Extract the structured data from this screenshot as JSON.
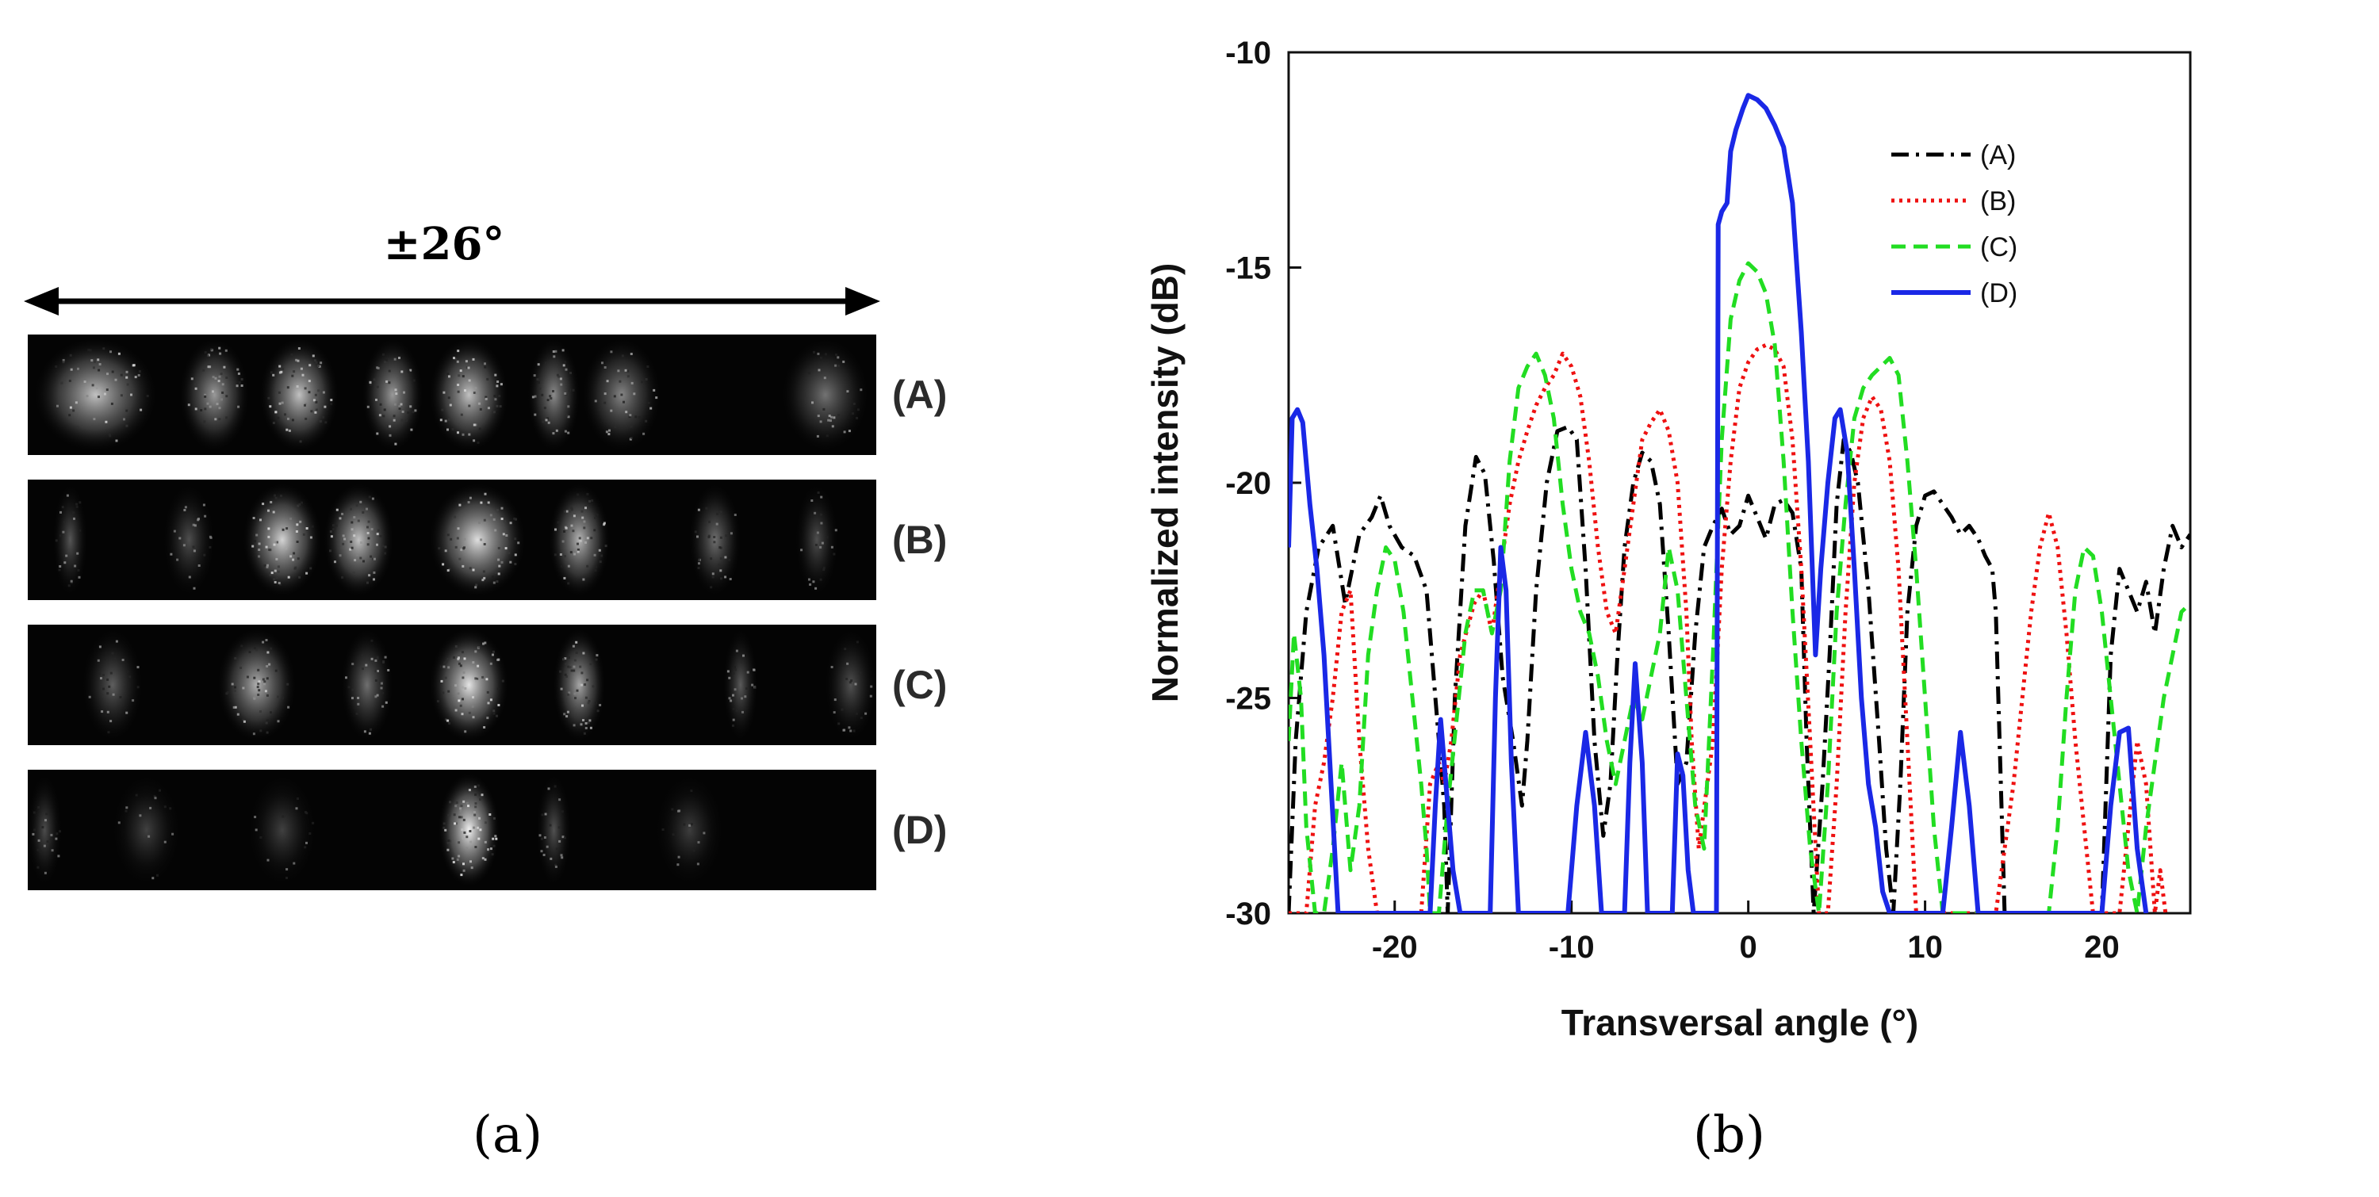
{
  "panel_a": {
    "span_label": "±26°",
    "rows": [
      {
        "label": "(A)",
        "spots": [
          {
            "c": 0.08,
            "w": 0.07,
            "i": 0.8
          },
          {
            "c": 0.22,
            "w": 0.04,
            "i": 0.62
          },
          {
            "c": 0.32,
            "w": 0.045,
            "i": 0.8
          },
          {
            "c": 0.43,
            "w": 0.035,
            "i": 0.62
          },
          {
            "c": 0.52,
            "w": 0.045,
            "i": 0.8
          },
          {
            "c": 0.62,
            "w": 0.03,
            "i": 0.55
          },
          {
            "c": 0.7,
            "w": 0.045,
            "i": 0.52
          },
          {
            "c": 0.94,
            "w": 0.05,
            "i": 0.42
          }
        ]
      },
      {
        "label": "(B)",
        "spots": [
          {
            "c": 0.05,
            "w": 0.02,
            "i": 0.25
          },
          {
            "c": 0.19,
            "w": 0.03,
            "i": 0.2
          },
          {
            "c": 0.3,
            "w": 0.045,
            "i": 0.88
          },
          {
            "c": 0.39,
            "w": 0.04,
            "i": 0.8
          },
          {
            "c": 0.53,
            "w": 0.055,
            "i": 0.92
          },
          {
            "c": 0.65,
            "w": 0.035,
            "i": 0.75
          },
          {
            "c": 0.81,
            "w": 0.03,
            "i": 0.4
          },
          {
            "c": 0.93,
            "w": 0.025,
            "i": 0.2
          }
        ]
      },
      {
        "label": "(C)",
        "spots": [
          {
            "c": 0.1,
            "w": 0.035,
            "i": 0.3
          },
          {
            "c": 0.27,
            "w": 0.045,
            "i": 0.72
          },
          {
            "c": 0.4,
            "w": 0.03,
            "i": 0.4
          },
          {
            "c": 0.52,
            "w": 0.045,
            "i": 0.95
          },
          {
            "c": 0.65,
            "w": 0.03,
            "i": 0.68
          },
          {
            "c": 0.84,
            "w": 0.02,
            "i": 0.28
          },
          {
            "c": 0.97,
            "w": 0.03,
            "i": 0.22
          }
        ]
      },
      {
        "label": "(D)",
        "spots": [
          {
            "c": 0.02,
            "w": 0.02,
            "i": 0.18
          },
          {
            "c": 0.14,
            "w": 0.04,
            "i": 0.1
          },
          {
            "c": 0.3,
            "w": 0.04,
            "i": 0.1
          },
          {
            "c": 0.52,
            "w": 0.035,
            "i": 1.0
          },
          {
            "c": 0.62,
            "w": 0.02,
            "i": 0.22
          },
          {
            "c": 0.78,
            "w": 0.04,
            "i": 0.08
          }
        ]
      }
    ],
    "caption": "(a)"
  },
  "panel_b": {
    "caption": "(b)"
  },
  "colors": {
    "A": "#000000",
    "B": "#ee1111",
    "C": "#22dd22",
    "D": "#1a28e6"
  },
  "chart_data": {
    "type": "line",
    "title": "",
    "xlabel": "Transversal angle (°)",
    "ylabel": "Normalized intensity (dB)",
    "xlim": [
      -26,
      25
    ],
    "ylim": [
      -30,
      -10
    ],
    "xticks": [
      -20,
      -10,
      0,
      10,
      20
    ],
    "yticks": [
      -30,
      -25,
      -20,
      -15,
      -10
    ],
    "legend_position": "top-right",
    "series": [
      {
        "name": "(A)",
        "style": "dash-dot",
        "color": "#000000",
        "x": [
          -26,
          -25.6,
          -25,
          -24.3,
          -23.5,
          -22.8,
          -22,
          -21.3,
          -20.8,
          -20.3,
          -19.6,
          -18.9,
          -18.2,
          -17.6,
          -17.2,
          -17.0,
          -16.6,
          -16.0,
          -15.4,
          -14.9,
          -14.4,
          -13.9,
          -13.3,
          -12.8,
          -12.5,
          -12.0,
          -11.4,
          -10.8,
          -10.2,
          -9.7,
          -9.2,
          -8.7,
          -8.2,
          -7.8,
          -7.4,
          -7.0,
          -6.5,
          -6.0,
          -5.5,
          -5.0,
          -4.5,
          -4.0,
          -3.5,
          -3.0,
          -2.5,
          -2.0,
          -1.5,
          -1.0,
          -0.5,
          0.0,
          0.5,
          1.0,
          1.5,
          2.0,
          2.5,
          3.0,
          3.3,
          3.7,
          4.2,
          4.6,
          5.0,
          5.4,
          5.8,
          6.2,
          6.8,
          7.4,
          7.8,
          8.2,
          8.6,
          9.0,
          9.5,
          10.0,
          10.5,
          11.0,
          11.5,
          12.0,
          12.5,
          13.0,
          13.4,
          13.8,
          14.0,
          14.5,
          15.5,
          16.5,
          17.5,
          18.5,
          19.5,
          20.0,
          20.5,
          21.0,
          21.5,
          22.0,
          22.5,
          23.0,
          23.5,
          24.0,
          24.5,
          25.0
        ],
        "y": [
          -30,
          -26,
          -23,
          -21.5,
          -21.0,
          -22.8,
          -21.2,
          -20.8,
          -20.3,
          -21.0,
          -21.5,
          -21.7,
          -22.5,
          -25.5,
          -27.5,
          -30,
          -25,
          -21.0,
          -19.4,
          -19.8,
          -21.8,
          -24.5,
          -26.0,
          -27.5,
          -26.0,
          -22.5,
          -20.0,
          -18.8,
          -18.7,
          -19.0,
          -22.0,
          -26.0,
          -28.2,
          -27.0,
          -24.0,
          -21.5,
          -20.0,
          -19.3,
          -19.5,
          -20.5,
          -23.5,
          -27.0,
          -26.5,
          -23.5,
          -21.5,
          -21.0,
          -20.6,
          -21.2,
          -21.0,
          -20.3,
          -20.8,
          -21.3,
          -20.5,
          -20.4,
          -20.7,
          -22.0,
          -26.0,
          -30,
          -27.0,
          -24.0,
          -20.5,
          -19.0,
          -19.3,
          -20.0,
          -22.5,
          -26.0,
          -28.5,
          -30,
          -27.0,
          -23.0,
          -21.0,
          -20.3,
          -20.2,
          -20.5,
          -20.8,
          -21.2,
          -21.0,
          -21.3,
          -21.7,
          -22.0,
          -23.0,
          -30,
          -30,
          -30,
          -30,
          -30,
          -30,
          -30,
          -24.0,
          -22.0,
          -22.5,
          -23.0,
          -22.3,
          -23.5,
          -22.0,
          -21.0,
          -21.5,
          -21.2
        ]
      },
      {
        "name": "(B)",
        "style": "dotted",
        "color": "#ee1111",
        "x": [
          -26,
          -25.5,
          -25.0,
          -24.5,
          -24.0,
          -23.5,
          -23.0,
          -22.5,
          -22.0,
          -21.5,
          -21.0,
          -20.5,
          -20.0,
          -18.5,
          -18.0,
          -17.5,
          -17.2,
          -16.8,
          -16.3,
          -15.5,
          -15.0,
          -14.5,
          -14.0,
          -13.5,
          -13.0,
          -12.5,
          -12.0,
          -11.5,
          -11.0,
          -10.5,
          -10.0,
          -9.5,
          -9.0,
          -8.5,
          -8.0,
          -7.5,
          -7.0,
          -6.5,
          -6.0,
          -5.5,
          -5.0,
          -4.5,
          -4.0,
          -3.5,
          -3.2,
          -2.8,
          -2.0,
          -1.5,
          -1.0,
          -0.5,
          0.0,
          0.5,
          1.0,
          1.5,
          2.0,
          2.5,
          3.0,
          3.5,
          4.0,
          4.5,
          5.0,
          5.5,
          6.0,
          6.5,
          7.0,
          7.5,
          8.0,
          8.5,
          9.0,
          9.5,
          10.0,
          14.0,
          14.5,
          15.0,
          15.5,
          16.0,
          16.5,
          17.0,
          17.5,
          18.0,
          18.5,
          19.0,
          19.5,
          20.0,
          20.5,
          21.0,
          21.5,
          22.0,
          22.5,
          23.0,
          23.3,
          23.6
        ],
        "y": [
          -30,
          -30,
          -30,
          -27.5,
          -26.5,
          -25.0,
          -23.0,
          -22.5,
          -26.0,
          -28.5,
          -30,
          -30,
          -30,
          -30,
          -27.0,
          -26.5,
          -27.0,
          -26.0,
          -24.0,
          -22.8,
          -22.5,
          -23.5,
          -22.0,
          -20.5,
          -19.5,
          -18.8,
          -18.2,
          -17.8,
          -17.5,
          -17.0,
          -17.3,
          -18.0,
          -19.5,
          -21.5,
          -23.0,
          -23.5,
          -22.0,
          -20.5,
          -19.0,
          -18.6,
          -18.3,
          -18.8,
          -20.0,
          -23.0,
          -26.0,
          -28.5,
          -26.0,
          -22.0,
          -19.5,
          -17.8,
          -17.2,
          -16.9,
          -16.8,
          -16.9,
          -17.3,
          -19.0,
          -22.0,
          -26.0,
          -30,
          -30,
          -27.0,
          -23.0,
          -20.0,
          -18.5,
          -18.0,
          -18.3,
          -19.5,
          -22.0,
          -26.0,
          -30,
          -30,
          -30,
          -28.5,
          -27.0,
          -25.0,
          -23.0,
          -21.5,
          -20.7,
          -21.5,
          -23.5,
          -26.0,
          -28.0,
          -30,
          -30,
          -30,
          -30,
          -28.0,
          -26.0,
          -27.0,
          -30,
          -29.0,
          -30
        ]
      },
      {
        "name": "(C)",
        "style": "dashed",
        "color": "#22dd22",
        "x": [
          -26,
          -25.7,
          -25.3,
          -25.0,
          -24.5,
          -24.0,
          -23.5,
          -23.0,
          -22.5,
          -22.0,
          -21.5,
          -21.0,
          -20.5,
          -20.0,
          -19.5,
          -19.0,
          -18.5,
          -18.2,
          -18.0,
          -17.5,
          -17.0,
          -16.5,
          -16.0,
          -15.5,
          -15.0,
          -14.5,
          -14.0,
          -13.5,
          -13.0,
          -12.5,
          -12.0,
          -11.5,
          -11.0,
          -10.5,
          -10.0,
          -9.5,
          -9.0,
          -8.5,
          -8.0,
          -7.5,
          -7.0,
          -6.5,
          -6.0,
          -5.5,
          -5.0,
          -4.5,
          -4.0,
          -3.5,
          -3.0,
          -2.5,
          -2.0,
          -1.5,
          -1.0,
          -0.5,
          0.0,
          0.5,
          1.0,
          1.5,
          2.0,
          2.5,
          3.0,
          3.5,
          4.0,
          4.5,
          5.0,
          5.5,
          6.0,
          6.5,
          7.0,
          7.5,
          8.0,
          8.5,
          9.0,
          9.5,
          10.0,
          10.5,
          11.0,
          17.0,
          17.5,
          18.0,
          18.5,
          19.0,
          19.5,
          20.0,
          20.5,
          21.0,
          21.5,
          22.0,
          22.5,
          23.0,
          23.5,
          24.0,
          24.5,
          25.0
        ],
        "y": [
          -26.0,
          -23.5,
          -25.0,
          -28.0,
          -30,
          -30,
          -28.5,
          -26.5,
          -29.0,
          -27.5,
          -24.0,
          -22.5,
          -21.5,
          -21.8,
          -23.0,
          -25.0,
          -27.0,
          -28.5,
          -30,
          -30,
          -27.5,
          -25.5,
          -23.5,
          -22.5,
          -22.5,
          -23.5,
          -22.5,
          -19.5,
          -17.8,
          -17.3,
          -17.0,
          -17.5,
          -18.5,
          -20.5,
          -22.0,
          -23.0,
          -23.5,
          -24.5,
          -26.0,
          -27.0,
          -26.0,
          -25.0,
          -25.5,
          -24.5,
          -23.5,
          -21.5,
          -22.5,
          -25.0,
          -27.5,
          -28.5,
          -24.0,
          -19.0,
          -16.2,
          -15.3,
          -14.9,
          -15.1,
          -15.6,
          -16.8,
          -19.5,
          -23.0,
          -26.0,
          -28.5,
          -30,
          -27.0,
          -23.0,
          -20.5,
          -18.5,
          -17.8,
          -17.5,
          -17.3,
          -17.1,
          -17.5,
          -19.5,
          -22.0,
          -25.0,
          -28.0,
          -30,
          -30,
          -28.0,
          -25.0,
          -22.5,
          -21.5,
          -21.7,
          -23.0,
          -25.0,
          -27.0,
          -29.0,
          -30,
          -28.0,
          -26.5,
          -25.0,
          -24.0,
          -23.0,
          -22.8
        ]
      },
      {
        "name": "(D)",
        "style": "solid",
        "color": "#1a28e6",
        "x": [
          -26,
          -25.8,
          -25.5,
          -25.2,
          -24.8,
          -24.4,
          -24.0,
          -23.6,
          -23.2,
          -18.0,
          -17.7,
          -17.4,
          -17.1,
          -16.7,
          -16.3,
          -14.6,
          -14.3,
          -14.0,
          -13.7,
          -13.4,
          -13.0,
          -10.2,
          -9.7,
          -9.2,
          -8.7,
          -8.3,
          -7.0,
          -6.7,
          -6.4,
          -6.0,
          -5.7,
          -4.3,
          -4.0,
          -3.7,
          -3.4,
          -3.1,
          -1.8,
          -1.7,
          -1.5,
          -1.2,
          -1.0,
          -0.7,
          -0.3,
          0.0,
          0.5,
          1.0,
          1.5,
          2.0,
          2.5,
          3.0,
          3.4,
          3.8,
          4.1,
          4.5,
          4.9,
          5.2,
          5.6,
          6.0,
          6.4,
          6.8,
          7.2,
          7.6,
          8.0,
          8.2,
          11.0,
          11.5,
          12.0,
          12.5,
          13.0,
          20.0,
          20.5,
          21.0,
          21.5,
          22.0,
          22.5
        ],
        "y": [
          -21.5,
          -18.5,
          -18.3,
          -18.6,
          -20.5,
          -22.0,
          -24.0,
          -27.0,
          -30,
          -30,
          -27.5,
          -25.5,
          -27.0,
          -29.0,
          -30,
          -30,
          -25.0,
          -21.5,
          -22.5,
          -26.5,
          -30,
          -30,
          -27.5,
          -25.8,
          -27.5,
          -30,
          -30,
          -26.5,
          -24.2,
          -26.5,
          -30,
          -30,
          -26.3,
          -26.8,
          -29.0,
          -30,
          -30,
          -14.0,
          -13.7,
          -13.5,
          -12.3,
          -11.8,
          -11.3,
          -11.0,
          -11.1,
          -11.3,
          -11.7,
          -12.2,
          -13.5,
          -16.5,
          -19.5,
          -24.0,
          -22.0,
          -20.0,
          -18.5,
          -18.3,
          -19.3,
          -22.0,
          -25.0,
          -27.0,
          -28.0,
          -29.5,
          -30,
          -30,
          -30,
          -28.0,
          -25.8,
          -27.5,
          -30,
          -30,
          -27.5,
          -25.8,
          -25.7,
          -28.5,
          -30
        ]
      }
    ]
  }
}
